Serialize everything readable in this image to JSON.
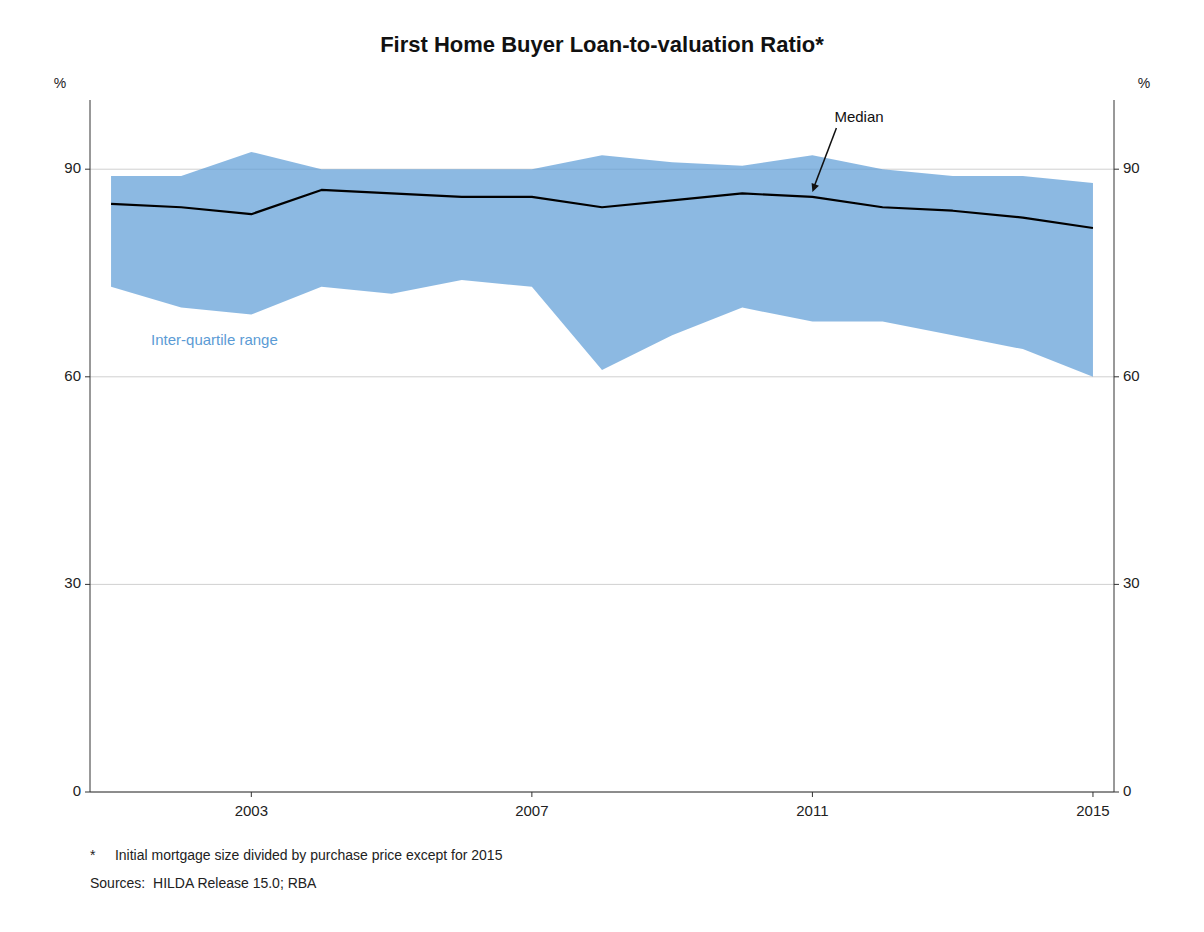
{
  "chart_data": {
    "type": "line",
    "title": "First Home Buyer Loan-to-valuation Ratio*",
    "ylabel": "%",
    "y2label": "%",
    "notes": [
      "*     Initial mortgage size divided by purchase price except for 2015",
      "Sources:  HILDA Release 15.0; RBA"
    ],
    "x": [
      2001,
      2002,
      2003,
      2004,
      2005,
      2006,
      2007,
      2008,
      2009,
      2010,
      2011,
      2012,
      2013,
      2014,
      2015
    ],
    "series": [
      {
        "name": "Median",
        "type": "line",
        "color": "#000000",
        "values": [
          85,
          84.5,
          83.5,
          87,
          86.5,
          86,
          86,
          84.5,
          85.5,
          86.5,
          86,
          84.5,
          84,
          83,
          81.5
        ]
      },
      {
        "name": "Inter-quartile range",
        "type": "area",
        "color": "#5b9bd5",
        "low": [
          73,
          70,
          69,
          73,
          72,
          74,
          73,
          61,
          66,
          70,
          68,
          68,
          66,
          64,
          60
        ],
        "high": [
          89,
          89,
          92.5,
          90,
          90,
          90,
          90,
          92,
          91,
          90.5,
          92,
          90,
          89,
          89,
          88
        ]
      }
    ],
    "xlim": [
      2000.7,
      2015.3
    ],
    "xticks": [
      2003,
      2007,
      2011,
      2015
    ],
    "ylim": [
      0,
      100
    ],
    "yticks": [
      0,
      30,
      60,
      90
    ],
    "y2lim": [
      0,
      100
    ],
    "y2ticks": [
      0,
      30,
      60,
      90
    ],
    "grid": true
  }
}
